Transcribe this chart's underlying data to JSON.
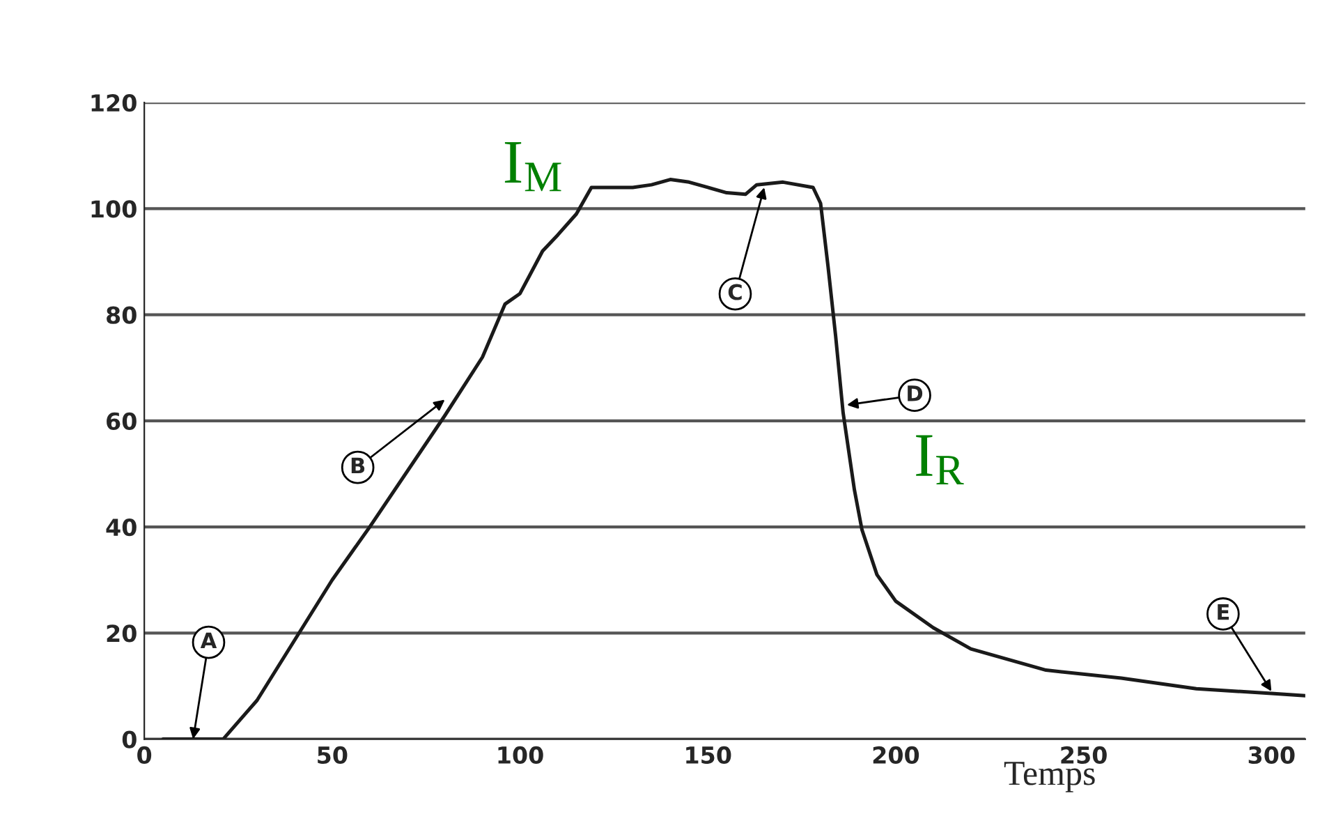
{
  "chart_data": {
    "type": "line",
    "xlabel": "Temps",
    "x": [
      5,
      15,
      21,
      30,
      50,
      60,
      80,
      90,
      96,
      100,
      106,
      110,
      115,
      119,
      125,
      130,
      135,
      140,
      145,
      150,
      155,
      160,
      163,
      170,
      178,
      180,
      182,
      184,
      186,
      189,
      191,
      195,
      200,
      210,
      220,
      240,
      260,
      280,
      300,
      309
    ],
    "series": [
      {
        "color": "#1a1a1a",
        "values": [
          0,
          0,
          0,
          7.3,
          30,
          40,
          61,
          72,
          82,
          84,
          92,
          95,
          99,
          104,
          104,
          104,
          104.5,
          105.5,
          105,
          104,
          103,
          102.7,
          104.5,
          105,
          104,
          101,
          89,
          76,
          61.5,
          47,
          39.5,
          31,
          26,
          21,
          17,
          13,
          11.5,
          9.5,
          8.6,
          8.2
        ]
      }
    ],
    "xlim": [
      0,
      309
    ],
    "xticks": [
      0,
      50,
      100,
      150,
      200,
      250,
      300
    ],
    "ylim": [
      0,
      120
    ],
    "yticks": [
      0,
      20,
      40,
      60,
      80,
      100,
      120
    ],
    "grid": "y",
    "marker": "none",
    "line_style": "solid",
    "annotations": [
      {
        "text": "A",
        "x": 13,
        "y": 0
      },
      {
        "text": "B",
        "x": 80,
        "y": 64
      },
      {
        "text": "C",
        "x": 165,
        "y": 104
      },
      {
        "text": "D",
        "x": 187,
        "y": 63
      },
      {
        "text": "E",
        "x": 300,
        "y": 9
      },
      {
        "text": "I$_{M}$",
        "x": 119,
        "y": 104
      },
      {
        "text": "I$_{R}$",
        "x": 186,
        "y": 61.5
      }
    ]
  }
}
